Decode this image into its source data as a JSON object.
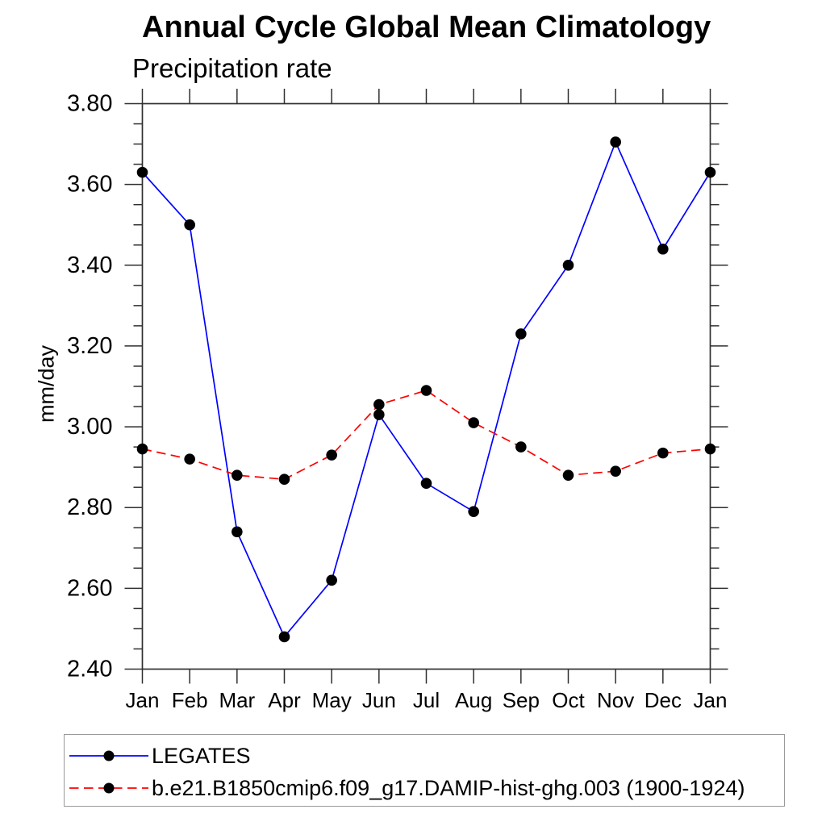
{
  "chart_data": {
    "type": "line",
    "title": "Annual Cycle Global Mean Climatology",
    "subtitle": "Precipitation rate",
    "ylabel": "mm/day",
    "x_tick_labels": [
      "Jan",
      "Feb",
      "Mar",
      "Apr",
      "May",
      "Jun",
      "Jul",
      "Aug",
      "Sep",
      "Oct",
      "Nov",
      "Dec",
      "Jan"
    ],
    "y_tick_labels": [
      "2.40",
      "2.60",
      "2.80",
      "3.00",
      "3.20",
      "3.40",
      "3.60",
      "3.80"
    ],
    "ylim": [
      2.4,
      3.8
    ],
    "y_major_step": 0.2,
    "y_minor_step": 0.05,
    "grid": false,
    "legend_position": "bottom-left-box",
    "axis_color": "#2f2f2f",
    "marker": "filled-circle",
    "marker_color": "#000000",
    "series": [
      {
        "name": "LEGATES",
        "slug": "legates",
        "color": "#0000ff",
        "style": "solid",
        "values": [
          3.63,
          3.5,
          2.74,
          2.48,
          2.62,
          3.03,
          2.86,
          2.79,
          3.23,
          3.4,
          3.705,
          3.44,
          3.63
        ]
      },
      {
        "name": "b.e21.B1850cmip6.f09_g17.DAMIP-hist-ghg.003 (1900-1924)",
        "slug": "model-damip-hist-ghg-003",
        "color": "#ff0000",
        "style": "dashed",
        "values": [
          2.945,
          2.92,
          2.88,
          2.87,
          2.93,
          3.055,
          3.09,
          3.01,
          2.95,
          2.88,
          2.89,
          2.935,
          2.945
        ]
      }
    ]
  }
}
